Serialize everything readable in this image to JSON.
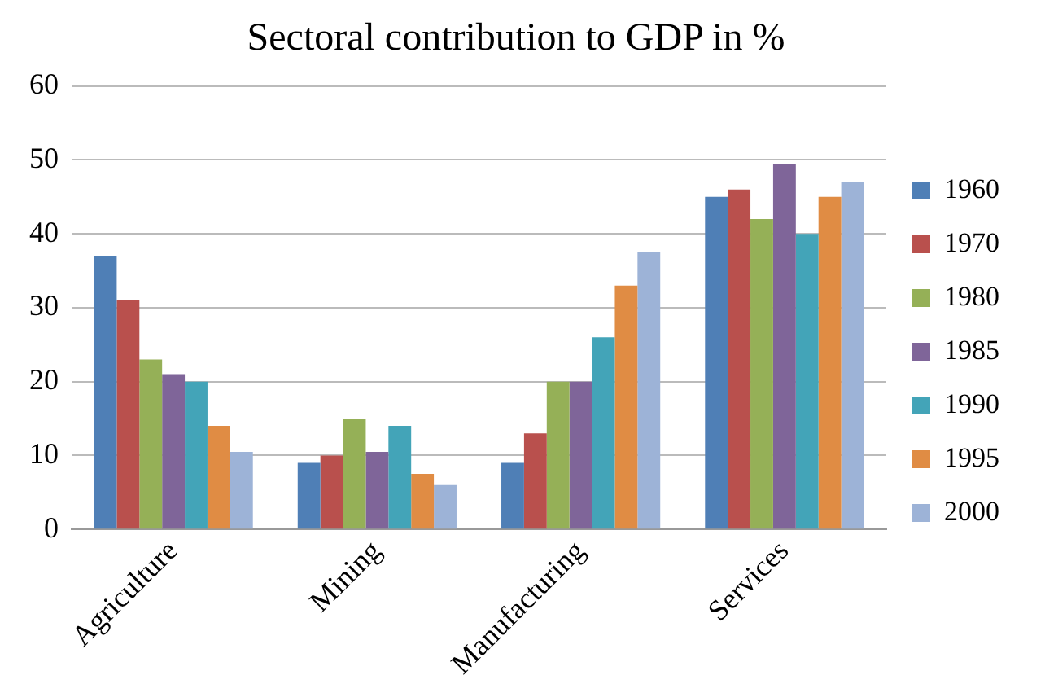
{
  "chart_data": {
    "type": "bar",
    "title": "Sectoral contribution to GDP in %",
    "categories": [
      "Agriculture",
      "Mining",
      "Manufacturing",
      "Services"
    ],
    "series": [
      {
        "name": "1960",
        "color": "#4f7fb6",
        "values": [
          37,
          9,
          9,
          45
        ]
      },
      {
        "name": "1970",
        "color": "#b9504d",
        "values": [
          31,
          10,
          13,
          46
        ]
      },
      {
        "name": "1980",
        "color": "#95b057",
        "values": [
          23,
          15,
          20,
          42
        ]
      },
      {
        "name": "1985",
        "color": "#7f6599",
        "values": [
          21,
          10.5,
          20,
          49.5
        ]
      },
      {
        "name": "1990",
        "color": "#43a4b8",
        "values": [
          20,
          14,
          26,
          40
        ]
      },
      {
        "name": "1995",
        "color": "#e08c44",
        "values": [
          14,
          7.5,
          33,
          45
        ]
      },
      {
        "name": "2000",
        "color": "#9db3d7",
        "values": [
          10.5,
          6,
          37.5,
          47
        ]
      }
    ],
    "ylim": [
      0,
      60
    ],
    "yticks": [
      0,
      10,
      20,
      30,
      40,
      50,
      60
    ],
    "grid": "y",
    "legend": "right"
  }
}
